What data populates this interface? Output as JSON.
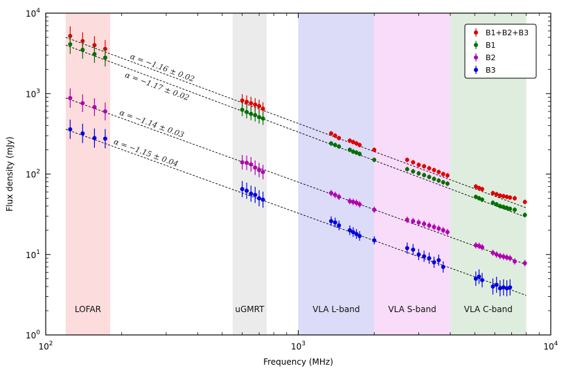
{
  "chart_data": {
    "type": "scatter",
    "xlabel": "Frequency (MHz)",
    "ylabel": "Flux density (mJy)",
    "xscale": "log",
    "yscale": "log",
    "xlim": [
      100,
      10000
    ],
    "ylim": [
      1,
      10000
    ],
    "x_ticks": [
      {
        "value": 100,
        "label": "10",
        "exp": "2"
      },
      {
        "value": 1000,
        "label": "10",
        "exp": "3"
      },
      {
        "value": 10000,
        "label": "10",
        "exp": "4"
      }
    ],
    "y_ticks": [
      {
        "value": 1,
        "label": "10",
        "exp": "0"
      },
      {
        "value": 10,
        "label": "10",
        "exp": "1"
      },
      {
        "value": 100,
        "label": "10",
        "exp": "2"
      },
      {
        "value": 1000,
        "label": "10",
        "exp": "3"
      },
      {
        "value": 10000,
        "label": "10",
        "exp": "4"
      }
    ],
    "grid": false,
    "legend_position": "top-right",
    "bands": [
      {
        "label": "LOFAR",
        "range": [
          120,
          180
        ],
        "color": "#fbd6d6"
      },
      {
        "label": "uGMRT",
        "range": [
          550,
          750
        ],
        "color": "#e8e8e8"
      },
      {
        "label": "VLA L-band",
        "range": [
          1000,
          2000
        ],
        "color": "#d6d6f8"
      },
      {
        "label": "VLA S-band",
        "range": [
          2000,
          4000
        ],
        "color": "#f8d6f8"
      },
      {
        "label": "VLA C-band",
        "range": [
          4000,
          8000
        ],
        "color": "#d9ead9"
      }
    ],
    "series": [
      {
        "name": "B1+B2+B3",
        "color": "#e00000",
        "alpha_label": "α = −1.16 ± 0.02",
        "fit": {
          "x": [
            120,
            8000
          ],
          "y": [
            5000,
            38
          ]
        },
        "x": [
          125,
          140,
          156,
          172,
          600,
          625,
          650,
          675,
          700,
          725,
          1350,
          1400,
          1450,
          1600,
          1650,
          1700,
          1750,
          2000,
          2700,
          2850,
          3000,
          3150,
          3300,
          3450,
          3600,
          3750,
          3900,
          5050,
          5200,
          5350,
          5900,
          6100,
          6300,
          6500,
          6700,
          6900,
          7200,
          7900
        ],
        "y": [
          5200,
          4500,
          4000,
          3600,
          820,
          790,
          760,
          730,
          700,
          650,
          320,
          300,
          280,
          260,
          250,
          240,
          230,
          200,
          150,
          140,
          130,
          125,
          118,
          112,
          106,
          100,
          96,
          70,
          67,
          65,
          58,
          56,
          54,
          53,
          52,
          51,
          50,
          45
        ],
        "err": [
          0.12,
          0.11,
          0.11,
          0.11,
          0.08,
          0.08,
          0.08,
          0.08,
          0.08,
          0.08,
          0.03,
          0.03,
          0.03,
          0.03,
          0.03,
          0.03,
          0.03,
          0.03,
          0.03,
          0.03,
          0.03,
          0.03,
          0.03,
          0.03,
          0.03,
          0.03,
          0.03,
          0.03,
          0.03,
          0.03,
          0.03,
          0.03,
          0.03,
          0.03,
          0.03,
          0.03,
          0.03,
          0.03
        ]
      },
      {
        "name": "B1",
        "color": "#007000",
        "alpha_label": "α = −1.17 ± 0.02",
        "fit": {
          "x": [
            120,
            8000
          ],
          "y": [
            4000,
            29
          ]
        },
        "x": [
          125,
          140,
          156,
          172,
          600,
          625,
          650,
          675,
          700,
          725,
          1350,
          1400,
          1450,
          1600,
          1650,
          1700,
          1750,
          2000,
          2700,
          2850,
          3000,
          3150,
          3300,
          3450,
          3600,
          3750,
          3900,
          5050,
          5200,
          5350,
          5900,
          6100,
          6300,
          6500,
          6700,
          6900,
          7200,
          7900
        ],
        "y": [
          4100,
          3500,
          3100,
          2800,
          630,
          590,
          560,
          540,
          510,
          490,
          240,
          230,
          220,
          200,
          190,
          185,
          178,
          150,
          115,
          108,
          102,
          97,
          92,
          87,
          83,
          79,
          76,
          52,
          50,
          48,
          44,
          42,
          40,
          39,
          38,
          37,
          36,
          31
        ],
        "err": [
          0.12,
          0.11,
          0.11,
          0.11,
          0.08,
          0.08,
          0.08,
          0.08,
          0.08,
          0.08,
          0.03,
          0.03,
          0.03,
          0.03,
          0.03,
          0.03,
          0.03,
          0.03,
          0.03,
          0.03,
          0.03,
          0.03,
          0.03,
          0.03,
          0.03,
          0.03,
          0.03,
          0.03,
          0.03,
          0.03,
          0.03,
          0.03,
          0.03,
          0.03,
          0.03,
          0.03,
          0.03,
          0.03
        ]
      },
      {
        "name": "B2",
        "color": "#b000b0",
        "alpha_label": "α = −1.14 ± 0.03",
        "fit": {
          "x": [
            120,
            8000
          ],
          "y": [
            880,
            7.5
          ]
        },
        "x": [
          125,
          140,
          156,
          172,
          600,
          625,
          650,
          675,
          700,
          725,
          1350,
          1400,
          1450,
          1600,
          1650,
          1700,
          1750,
          2000,
          2700,
          2850,
          3000,
          3150,
          3300,
          3450,
          3600,
          3750,
          3900,
          5050,
          5200,
          5350,
          5900,
          6100,
          6300,
          6500,
          6700,
          6900,
          7200,
          7900
        ],
        "y": [
          880,
          760,
          680,
          600,
          140,
          138,
          132,
          120,
          112,
          106,
          58,
          55,
          52,
          46,
          45,
          44,
          42,
          36,
          27,
          26,
          25,
          24,
          23,
          22,
          21,
          20,
          19,
          13,
          12.8,
          12.3,
          10.5,
          10,
          9.6,
          9.4,
          9.2,
          9,
          8.2,
          7.8
        ],
        "err": [
          0.12,
          0.11,
          0.11,
          0.11,
          0.09,
          0.09,
          0.09,
          0.09,
          0.09,
          0.09,
          0.04,
          0.04,
          0.04,
          0.04,
          0.04,
          0.04,
          0.04,
          0.04,
          0.04,
          0.04,
          0.04,
          0.04,
          0.04,
          0.04,
          0.04,
          0.04,
          0.04,
          0.04,
          0.04,
          0.04,
          0.04,
          0.04,
          0.04,
          0.04,
          0.04,
          0.04,
          0.04,
          0.04
        ]
      },
      {
        "name": "B3",
        "color": "#0000e0",
        "alpha_label": "α = −1.15 ± 0.04",
        "fit": {
          "x": [
            120,
            8000
          ],
          "y": [
            360,
            3.1
          ]
        },
        "x": [
          125,
          140,
          156,
          172,
          600,
          625,
          650,
          675,
          700,
          725,
          1350,
          1400,
          1450,
          1600,
          1650,
          1700,
          1750,
          2000,
          2700,
          2850,
          3000,
          3150,
          3300,
          3450,
          3600,
          3750,
          5050,
          5200,
          5350,
          5900,
          6100,
          6300,
          6500,
          6700,
          6900
        ],
        "y": [
          360,
          320,
          280,
          275,
          65,
          62,
          57,
          55,
          50,
          48,
          26,
          25,
          23,
          20,
          19,
          18,
          17,
          15,
          12,
          11.5,
          10,
          9.5,
          9,
          8,
          8.5,
          7,
          5,
          5.3,
          4.8,
          4,
          4.2,
          3.8,
          3.9,
          3.8,
          3.9
        ],
        "err": [
          0.12,
          0.12,
          0.12,
          0.12,
          0.1,
          0.1,
          0.1,
          0.1,
          0.1,
          0.1,
          0.06,
          0.06,
          0.06,
          0.06,
          0.06,
          0.06,
          0.06,
          0.05,
          0.07,
          0.07,
          0.07,
          0.07,
          0.07,
          0.07,
          0.07,
          0.07,
          0.09,
          0.09,
          0.09,
          0.1,
          0.1,
          0.1,
          0.1,
          0.1,
          0.1
        ]
      }
    ]
  }
}
